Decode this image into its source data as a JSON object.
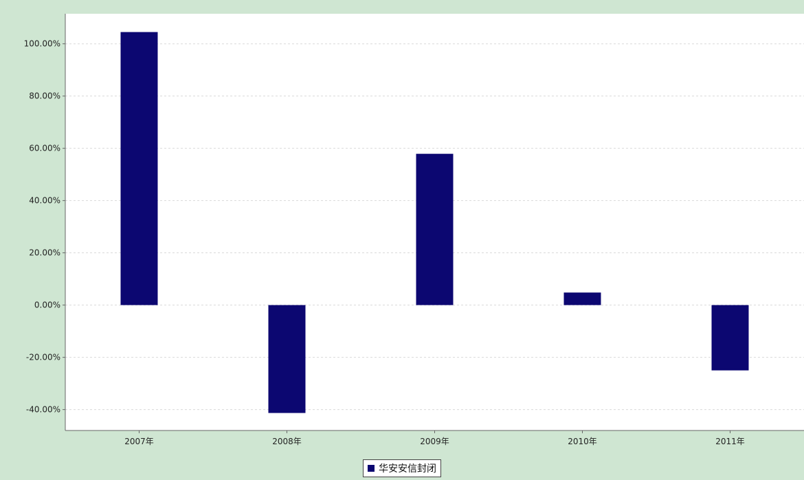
{
  "colors": {
    "background": "#cfe6d2",
    "plot_background": "#ffffff",
    "bar": "#0c0771",
    "grid": "#d9d9d9",
    "axis": "#666666"
  },
  "chart_data": {
    "type": "bar",
    "categories": [
      "2007年",
      "2008年",
      "2009年",
      "2010年",
      "2011年"
    ],
    "series": [
      {
        "name": "华安安信封闭",
        "color": "#0c0771",
        "values": [
          104.5,
          -41.3,
          57.9,
          4.8,
          -25.0
        ]
      }
    ],
    "ylim": [
      -48,
      111.5
    ],
    "yticks": [
      -40,
      -20,
      0,
      20,
      40,
      60,
      80,
      100
    ],
    "ytick_labels": [
      "-40.00%",
      "-20.00%",
      "0.00%",
      "20.00%",
      "40.00%",
      "60.00%",
      "80.00%",
      "100.00%"
    ],
    "grid": true,
    "legend_position": "bottom"
  }
}
